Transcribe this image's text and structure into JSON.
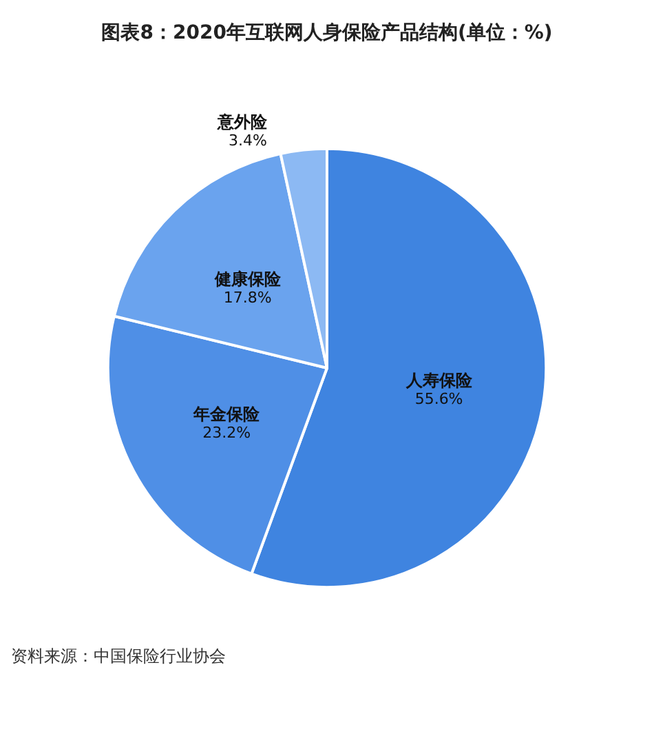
{
  "chart_data": {
    "type": "pie",
    "title": "图表8：2020年互联网人身保险产品结构(单位：%)",
    "categories": [
      "人寿保险",
      "年金保险",
      "健康保险",
      "意外险"
    ],
    "values": [
      55.6,
      23.2,
      17.8,
      3.4
    ],
    "colors": [
      "#3f84e0",
      "#4f8fe6",
      "#6aa3ee",
      "#8cb9f3"
    ],
    "value_labels": [
      "55.6%",
      "23.2%",
      "17.8%",
      "3.4%"
    ],
    "legend": false,
    "annotations": [
      "资料来源：中国保险行业协会"
    ]
  }
}
